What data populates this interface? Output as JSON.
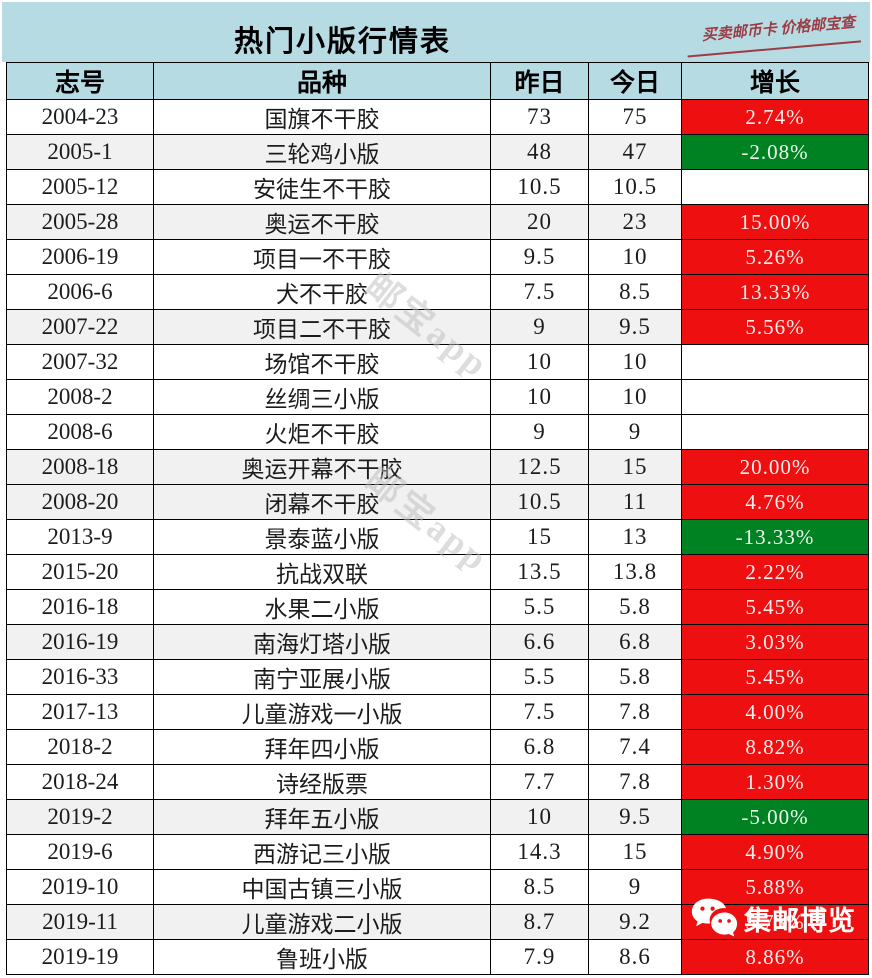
{
  "title": "热门小版行情表",
  "promo_text": "买卖邮币卡 价格邮宝查",
  "watermark_text": "邮宝app",
  "brand_watermark": {
    "icon": "wechat-icon",
    "label": "集邮博览"
  },
  "colors": {
    "header_blue": "#b7dbe3",
    "up_red": "#ee1010",
    "down_green": "#008223",
    "shaded_row": "#f1f1f1",
    "promo_red": "#9c3c45"
  },
  "chart_data": {
    "type": "table",
    "title": "热门小版行情表",
    "columns": [
      "志号",
      "品种",
      "昨日",
      "今日",
      "增长"
    ],
    "rows": [
      {
        "issue": "2004-23",
        "variety": "国旗不干胶",
        "yesterday": "73",
        "today": "75",
        "growth": "2.74%",
        "trend": "up",
        "shaded": false
      },
      {
        "issue": "2005-1",
        "variety": "三轮鸡小版",
        "yesterday": "48",
        "today": "47",
        "growth": "-2.08%",
        "trend": "down",
        "shaded": true
      },
      {
        "issue": "2005-12",
        "variety": "安徒生不干胶",
        "yesterday": "10.5",
        "today": "10.5",
        "growth": "",
        "trend": "flat",
        "shaded": false
      },
      {
        "issue": "2005-28",
        "variety": "奥运不干胶",
        "yesterday": "20",
        "today": "23",
        "growth": "15.00%",
        "trend": "up",
        "shaded": true
      },
      {
        "issue": "2006-19",
        "variety": "项目一不干胶",
        "yesterday": "9.5",
        "today": "10",
        "growth": "5.26%",
        "trend": "up",
        "shaded": false
      },
      {
        "issue": "2006-6",
        "variety": "犬不干胶",
        "yesterday": "7.5",
        "today": "8.5",
        "growth": "13.33%",
        "trend": "up",
        "shaded": false
      },
      {
        "issue": "2007-22",
        "variety": "项目二不干胶",
        "yesterday": "9",
        "today": "9.5",
        "growth": "5.56%",
        "trend": "up",
        "shaded": true
      },
      {
        "issue": "2007-32",
        "variety": "场馆不干胶",
        "yesterday": "10",
        "today": "10",
        "growth": "",
        "trend": "flat",
        "shaded": false
      },
      {
        "issue": "2008-2",
        "variety": "丝绸三小版",
        "yesterday": "10",
        "today": "10",
        "growth": "",
        "trend": "flat",
        "shaded": false
      },
      {
        "issue": "2008-6",
        "variety": "火炬不干胶",
        "yesterday": "9",
        "today": "9",
        "growth": "",
        "trend": "flat",
        "shaded": false
      },
      {
        "issue": "2008-18",
        "variety": "奥运开幕不干胶",
        "yesterday": "12.5",
        "today": "15",
        "growth": "20.00%",
        "trend": "up",
        "shaded": true
      },
      {
        "issue": "2008-20",
        "variety": "闭幕不干胶",
        "yesterday": "10.5",
        "today": "11",
        "growth": "4.76%",
        "trend": "up",
        "shaded": true
      },
      {
        "issue": "2013-9",
        "variety": "景泰蓝小版",
        "yesterday": "15",
        "today": "13",
        "growth": "-13.33%",
        "trend": "down",
        "shaded": false
      },
      {
        "issue": "2015-20",
        "variety": "抗战双联",
        "yesterday": "13.5",
        "today": "13.8",
        "growth": "2.22%",
        "trend": "up",
        "shaded": false
      },
      {
        "issue": "2016-18",
        "variety": "水果二小版",
        "yesterday": "5.5",
        "today": "5.8",
        "growth": "5.45%",
        "trend": "up",
        "shaded": false
      },
      {
        "issue": "2016-19",
        "variety": "南海灯塔小版",
        "yesterday": "6.6",
        "today": "6.8",
        "growth": "3.03%",
        "trend": "up",
        "shaded": true
      },
      {
        "issue": "2016-33",
        "variety": "南宁亚展小版",
        "yesterday": "5.5",
        "today": "5.8",
        "growth": "5.45%",
        "trend": "up",
        "shaded": false
      },
      {
        "issue": "2017-13",
        "variety": "儿童游戏一小版",
        "yesterday": "7.5",
        "today": "7.8",
        "growth": "4.00%",
        "trend": "up",
        "shaded": false
      },
      {
        "issue": "2018-2",
        "variety": "拜年四小版",
        "yesterday": "6.8",
        "today": "7.4",
        "growth": "8.82%",
        "trend": "up",
        "shaded": false
      },
      {
        "issue": "2018-24",
        "variety": "诗经版票",
        "yesterday": "7.7",
        "today": "7.8",
        "growth": "1.30%",
        "trend": "up",
        "shaded": false
      },
      {
        "issue": "2019-2",
        "variety": "拜年五小版",
        "yesterday": "10",
        "today": "9.5",
        "growth": "-5.00%",
        "trend": "down",
        "shaded": true
      },
      {
        "issue": "2019-6",
        "variety": "西游记三小版",
        "yesterday": "14.3",
        "today": "15",
        "growth": "4.90%",
        "trend": "up",
        "shaded": false
      },
      {
        "issue": "2019-10",
        "variety": "中国古镇三小版",
        "yesterday": "8.5",
        "today": "9",
        "growth": "5.88%",
        "trend": "up",
        "shaded": false
      },
      {
        "issue": "2019-11",
        "variety": "儿童游戏二小版",
        "yesterday": "8.7",
        "today": "9.2",
        "growth": "5.75%",
        "trend": "up",
        "shaded": true
      },
      {
        "issue": "2019-19",
        "variety": "鲁班小版",
        "yesterday": "7.9",
        "today": "8.6",
        "growth": "8.86%",
        "trend": "up",
        "shaded": false
      }
    ],
    "legend_semantics": "red cell = price up, green cell = price down, blank cell = unchanged"
  }
}
